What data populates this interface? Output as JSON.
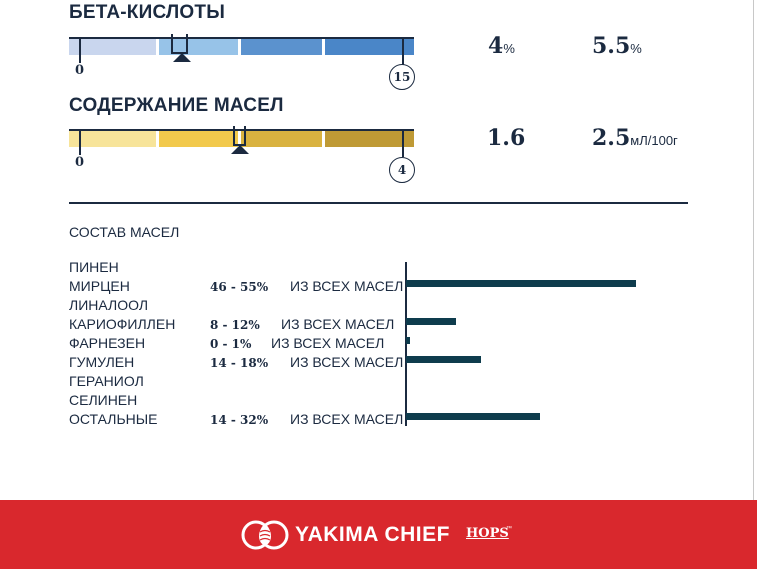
{
  "beta_acids": {
    "title": "БЕТА-КИСЛОТЫ",
    "scale_min": "0",
    "scale_max": "15",
    "range_low": "4",
    "range_low_unit": "%",
    "range_high": "5.5",
    "range_high_unit": "%",
    "colors": [
      "#c9d6ee",
      "#97c3e8",
      "#5b92ce",
      "#4a86c8"
    ]
  },
  "oil_content": {
    "title": "СОДЕРЖАНИЕ МАСЕЛ",
    "scale_min": "0",
    "scale_max": "4",
    "range_low": "1.6",
    "range_high": "2.5",
    "range_high_unit": "мЛ/100г",
    "colors": [
      "#f7e49a",
      "#f2c94c",
      "#d9b240",
      "#bf9a35"
    ]
  },
  "composition": {
    "title": "СОСТАВ МАСЕЛ",
    "rows": [
      {
        "name": "ПИНЕН",
        "range": "",
        "suffix": "",
        "percent": 0
      },
      {
        "name": "МИРЦЕН",
        "range": "46 - 55%",
        "suffix": "ИЗ ВСЕХ МАСЕЛ",
        "percent": 55
      },
      {
        "name": "ЛИНАЛООЛ",
        "range": "",
        "suffix": "",
        "percent": 0
      },
      {
        "name": "КАРИОФИЛЛЕН",
        "range": "8 - 12%",
        "suffix": "ИЗ ВСЕХ МАСЕЛ",
        "percent": 12
      },
      {
        "name": "ФАРНЕЗЕН",
        "range": "0 - 1%",
        "suffix": "ИЗ ВСЕХ МАСЕЛ",
        "percent": 1
      },
      {
        "name": "ГУМУЛЕН",
        "range": "14 - 18%",
        "suffix": "ИЗ ВСЕХ МАСЕЛ",
        "percent": 18
      },
      {
        "name": "ГЕРАНИОЛ",
        "range": "",
        "suffix": "",
        "percent": 0
      },
      {
        "name": "СЕЛИНЕН",
        "range": "",
        "suffix": "",
        "percent": 0
      },
      {
        "name": "ОСТАЛЬНЫЕ",
        "range": "14 - 32%",
        "suffix": "ИЗ ВСЕХ МАСЕЛ",
        "percent": 32
      }
    ]
  },
  "footer": {
    "brand": "YAKIMA CHIEF",
    "brand_sub": "HOPS",
    "tm": "™",
    "background": "#d9282d"
  }
}
